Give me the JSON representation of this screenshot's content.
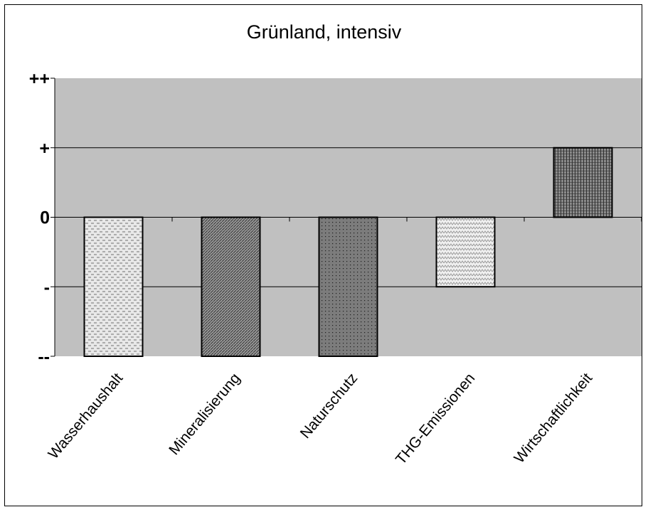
{
  "chart_data": {
    "type": "bar",
    "title": "Grünland, intensiv",
    "xlabel": "",
    "ylabel": "",
    "categories": [
      "Wasserhaushalt",
      "Mineralisierung",
      "Naturschutz",
      "THG-Emissionen",
      "Wirtschaftlichkeit"
    ],
    "values": [
      -2,
      -2,
      -2,
      -1,
      1
    ],
    "ylim": [
      -2,
      2
    ],
    "y_ticks": [
      {
        "value": 2,
        "label": "++"
      },
      {
        "value": 1,
        "label": "+"
      },
      {
        "value": 0,
        "label": "0"
      },
      {
        "value": -1,
        "label": "-"
      },
      {
        "value": -2,
        "label": "--"
      }
    ],
    "grid": true,
    "legend": "none",
    "colors": {
      "plot_background": "#c0c0c0",
      "Wasserhaushalt": "#e6e6e6",
      "Mineralisierung": "#8a8a8a",
      "Naturschutz": "#7a7a7a",
      "THG-Emissionen": "#ececec",
      "Wirtschaftlichkeit": "#5a5a5a"
    }
  }
}
